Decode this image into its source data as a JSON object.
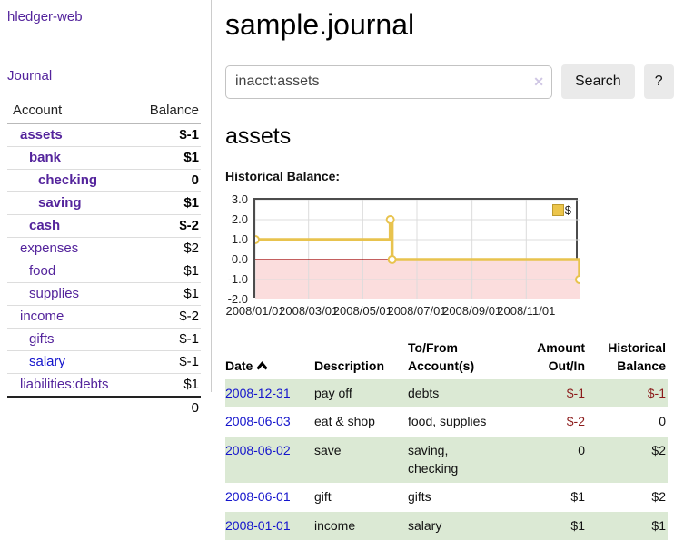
{
  "app": {
    "title": "hledger-web"
  },
  "sidebar": {
    "journal_link": "Journal",
    "table": {
      "account_header": "Account",
      "balance_header": "Balance",
      "accounts": [
        {
          "name": "assets",
          "balance": "$-1"
        },
        {
          "name": "bank",
          "balance": "$1"
        },
        {
          "name": "checking",
          "balance": "0"
        },
        {
          "name": "saving",
          "balance": "$1"
        },
        {
          "name": "cash",
          "balance": "$-2"
        },
        {
          "name": "expenses",
          "balance": "$2"
        },
        {
          "name": "food",
          "balance": "$1"
        },
        {
          "name": "supplies",
          "balance": "$1"
        },
        {
          "name": "income",
          "balance": "$-2"
        },
        {
          "name": "gifts",
          "balance": "$-1"
        },
        {
          "name": "salary",
          "balance": "$-1"
        },
        {
          "name": "liabilities:debts",
          "balance": "$1"
        }
      ],
      "total": "0"
    }
  },
  "main": {
    "title": "sample.journal",
    "search": {
      "value": "inacct:assets",
      "clear_label": "✕",
      "search_button": "Search",
      "help_button": "?"
    },
    "account_heading": "assets",
    "section_label": "Historical Balance:"
  },
  "register": {
    "headers": {
      "date": "Date",
      "description": "Description",
      "accounts": "To/From\nAccount(s)",
      "amount": "Amount\nOut/In",
      "balance": "Historical\nBalance"
    },
    "rows": [
      {
        "date": "2008-12-31",
        "description": "pay off",
        "accounts": "debts",
        "amount": "$-1",
        "balance": "$-1"
      },
      {
        "date": "2008-06-03",
        "description": "eat & shop",
        "accounts": "food, supplies",
        "amount": "$-2",
        "balance": "0"
      },
      {
        "date": "2008-06-02",
        "description": "save",
        "accounts": "saving,\nchecking",
        "amount": "0",
        "balance": "$2"
      },
      {
        "date": "2008-06-01",
        "description": "gift",
        "accounts": "gifts",
        "amount": "$1",
        "balance": "$2"
      },
      {
        "date": "2008-01-01",
        "description": "income",
        "accounts": "salary",
        "amount": "$1",
        "balance": "$1"
      }
    ]
  },
  "chart_data": {
    "type": "line",
    "step": true,
    "title": "Historical Balance",
    "series": [
      {
        "name": "$",
        "points": [
          {
            "date": "2008-01-01",
            "value": 1
          },
          {
            "date": "2008-06-01",
            "value": 2
          },
          {
            "date": "2008-06-03",
            "value": 0
          },
          {
            "date": "2008-12-31",
            "value": -1
          }
        ]
      }
    ],
    "x_range": [
      "2008-01-01",
      "2008-12-31"
    ],
    "x_ticks": [
      "2008/01/01",
      "2008/03/01",
      "2008/05/01",
      "2008/07/01",
      "2008/09/01",
      "2008/11/01"
    ],
    "y_ticks": [
      "3.0",
      "2.0",
      "1.0",
      "0.0",
      "-1.0",
      "-2.0"
    ],
    "ylim": [
      -2,
      3
    ],
    "legend": {
      "label": "$",
      "position": "top-right"
    },
    "grid": true,
    "colors": {
      "line": "#e8c34e",
      "marker_fill": "#ffffff",
      "negative_region": "#fbdddd",
      "zero_line": "#a00000",
      "grid": "#dcdcdc",
      "border": "#4c4c4c"
    }
  }
}
